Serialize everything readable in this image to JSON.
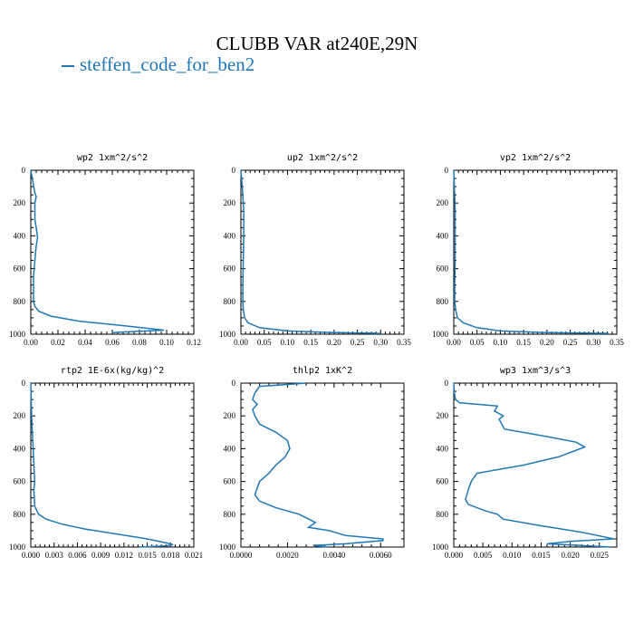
{
  "figure": {
    "title": "CLUBB VAR at240E,29N",
    "legend": "steffen_code_for_ben2",
    "line_color": "#1f77b4"
  },
  "chart_data": [
    {
      "type": "line",
      "title": "wp2  1xm^2/s^2",
      "xlim": [
        0,
        0.12
      ],
      "ylim": [
        0,
        1000
      ],
      "y_inverted": true,
      "xticks": [
        "0.00",
        "0.02",
        "0.04",
        "0.06",
        "0.08",
        "0.10",
        "0.12"
      ],
      "yticks": [
        "0",
        "200",
        "400",
        "600",
        "800",
        "1000"
      ],
      "series": [
        {
          "x": [
            0.0,
            0.003,
            0.004,
            0.003,
            0.003,
            0.003,
            0.004,
            0.005,
            0.004,
            0.003,
            0.002,
            0.002,
            0.002,
            0.003,
            0.006,
            0.015,
            0.035,
            0.07,
            0.098,
            0.06
          ],
          "y": [
            0,
            140,
            160,
            200,
            250,
            300,
            350,
            410,
            460,
            550,
            650,
            750,
            800,
            830,
            860,
            890,
            920,
            950,
            975,
            990
          ]
        }
      ]
    },
    {
      "type": "line",
      "title": "up2  1xm^2/s^2",
      "xlim": [
        0,
        0.35
      ],
      "ylim": [
        0,
        1000
      ],
      "y_inverted": true,
      "xticks": [
        "0.00",
        "0.05",
        "0.10",
        "0.15",
        "0.20",
        "0.25",
        "0.30",
        "0.35"
      ],
      "yticks": [
        "0",
        "200",
        "400",
        "600",
        "800",
        "1000"
      ],
      "series": [
        {
          "x": [
            0.0,
            0.004,
            0.006,
            0.006,
            0.005,
            0.004,
            0.004,
            0.005,
            0.008,
            0.015,
            0.04,
            0.1,
            0.2,
            0.3
          ],
          "y": [
            0,
            150,
            250,
            400,
            550,
            700,
            800,
            850,
            900,
            930,
            960,
            980,
            990,
            995
          ]
        }
      ]
    },
    {
      "type": "line",
      "title": "vp2  1xm^2/s^2",
      "xlim": [
        0,
        0.35
      ],
      "ylim": [
        0,
        1000
      ],
      "y_inverted": true,
      "xticks": [
        "0.00",
        "0.05",
        "0.10",
        "0.15",
        "0.20",
        "0.25",
        "0.30",
        "0.35"
      ],
      "yticks": [
        "0",
        "200",
        "400",
        "600",
        "800",
        "1000"
      ],
      "series": [
        {
          "x": [
            0.0,
            0.002,
            0.003,
            0.003,
            0.003,
            0.002,
            0.002,
            0.004,
            0.008,
            0.02,
            0.05,
            0.1,
            0.2,
            0.33
          ],
          "y": [
            0,
            150,
            250,
            400,
            550,
            700,
            800,
            850,
            900,
            930,
            960,
            980,
            990,
            995
          ]
        }
      ]
    },
    {
      "type": "line",
      "title": "rtp2  1E-6x(kg/kg)^2",
      "xlim": [
        0,
        0.021
      ],
      "ylim": [
        0,
        1000
      ],
      "y_inverted": true,
      "xticks": [
        "0.000",
        "0.003",
        "0.006",
        "0.009",
        "0.012",
        "0.015",
        "0.018",
        "0.021"
      ],
      "yticks": [
        "0",
        "200",
        "400",
        "600",
        "800",
        "1000"
      ],
      "series": [
        {
          "x": [
            0.0,
            0.0001,
            0.0002,
            0.0003,
            0.0004,
            0.0005,
            0.0004,
            0.0005,
            0.001,
            0.002,
            0.004,
            0.007,
            0.011,
            0.015,
            0.0175,
            0.0183,
            0.0175,
            0.014
          ],
          "y": [
            0,
            200,
            300,
            400,
            500,
            600,
            650,
            750,
            800,
            830,
            860,
            890,
            920,
            950,
            975,
            985,
            993,
            1000
          ]
        }
      ]
    },
    {
      "type": "line",
      "title": "thlp2  1xK^2",
      "xlim": [
        0,
        0.007
      ],
      "ylim": [
        0,
        1000
      ],
      "y_inverted": true,
      "xticks": [
        "0.0000",
        "0.0020",
        "0.0040",
        "0.0060"
      ],
      "yticks": [
        "0",
        "200",
        "400",
        "600",
        "800",
        "1000"
      ],
      "series": [
        {
          "x": [
            0.0028,
            0.0008,
            0.0006,
            0.0005,
            0.0007,
            0.0005,
            0.0006,
            0.0008,
            0.0015,
            0.002,
            0.0021,
            0.0019,
            0.0015,
            0.0012,
            0.0008,
            0.0006,
            0.0008,
            0.0015,
            0.0025,
            0.0032,
            0.0029,
            0.0038,
            0.0045,
            0.0061,
            0.0061,
            0.0045,
            0.0031,
            0.0037
          ],
          "y": [
            0,
            20,
            60,
            100,
            130,
            160,
            200,
            250,
            300,
            350,
            400,
            450,
            500,
            550,
            600,
            680,
            720,
            760,
            800,
            850,
            880,
            900,
            930,
            950,
            960,
            980,
            990,
            1000
          ]
        }
      ]
    },
    {
      "type": "line",
      "title": "wp3  1xm^3/s^3",
      "xlim": [
        0,
        0.028
      ],
      "ylim": [
        0,
        1000
      ],
      "y_inverted": true,
      "xticks": [
        "0.000",
        "0.005",
        "0.010",
        "0.015",
        "0.020",
        "0.025"
      ],
      "yticks": [
        "0",
        "200",
        "400",
        "600",
        "800",
        "1000"
      ],
      "series": [
        {
          "x": [
            0.0,
            0.0001,
            0.0003,
            0.001,
            0.0075,
            0.007,
            0.0085,
            0.0078,
            0.0087,
            0.015,
            0.021,
            0.0225,
            0.018,
            0.012,
            0.004,
            0.003,
            0.0025,
            0.002,
            0.0025,
            0.0055,
            0.0075,
            0.0085,
            0.015,
            0.022,
            0.0275,
            0.02,
            0.016,
            0.027
          ],
          "y": [
            0,
            60,
            100,
            120,
            140,
            170,
            200,
            220,
            280,
            320,
            360,
            390,
            450,
            500,
            550,
            600,
            650,
            710,
            740,
            780,
            800,
            830,
            870,
            910,
            950,
            965,
            980,
            1000
          ]
        }
      ]
    }
  ]
}
